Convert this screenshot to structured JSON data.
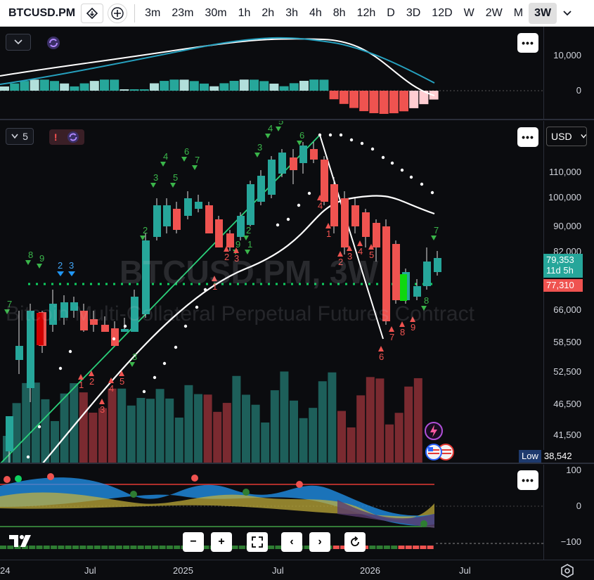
{
  "toolbar": {
    "symbol": "BTCUSD.PM",
    "intervals": [
      "3m",
      "23m",
      "30m",
      "1h",
      "2h",
      "3h",
      "4h",
      "8h",
      "12h",
      "D",
      "3D",
      "12D",
      "W",
      "2W",
      "M",
      "3W"
    ],
    "active_interval": "3W"
  },
  "top_pane": {
    "axis_ticks": [
      "10,000",
      "0"
    ],
    "colors": {
      "macd_line": "#ffffff",
      "signal_line": "#26a1bf",
      "hist_pos": "#26a69a",
      "hist_pos_light": "#b2dfdb",
      "hist_neg": "#ef5350",
      "hist_neg_light": "#ffcdd2"
    }
  },
  "main_pane": {
    "legend_value": "5",
    "watermark": "BTCUSD.PM, 3W",
    "watermark_sub": "Bitcoin Multi-Collateral Perpetual Futures Contract",
    "currency": "USD",
    "axis_ticks": [
      "110,000",
      "100,000",
      "90,000",
      "82,000",
      "66,000",
      "58,500",
      "52,500",
      "46,500",
      "41,500"
    ],
    "price_badge": {
      "price": "79,353",
      "countdown": "11d 5h",
      "color": "#26a69a"
    },
    "level_badge": {
      "price": "77,310",
      "color": "#ef5350"
    },
    "low_label": "Low",
    "low_value": "38,542",
    "td_labels_up": [
      "7",
      "8",
      "9",
      "3",
      "4",
      "5",
      "6",
      "7",
      "2",
      "3",
      "4",
      "5",
      "6",
      "7",
      "8",
      "9",
      "1",
      "2",
      "3",
      "4",
      "5",
      "6",
      "7",
      "8",
      "9",
      "1",
      "2"
    ],
    "td_labels_down": [
      "1",
      "2",
      "3",
      "4",
      "5",
      "1",
      "2",
      "3",
      "4",
      "1",
      "2",
      "3",
      "4",
      "5",
      "6",
      "7",
      "8",
      "9",
      "1"
    ],
    "setup_labels": [
      "2",
      "3"
    ],
    "colors": {
      "up": "#26a69a",
      "down": "#ef5350",
      "signal_green": "#0fd70f",
      "signal_red": "#d00000"
    }
  },
  "bottom_pane": {
    "axis_ticks": [
      "100",
      "0",
      "−100"
    ]
  },
  "time_axis": {
    "labels": [
      "24",
      "Jul",
      "2025",
      "Jul",
      "2026",
      "Jul"
    ]
  },
  "nav": {
    "buttons": [
      "zoom-out",
      "zoom-in",
      "reset-scale",
      "scroll-left",
      "scroll-right",
      "reset-chart"
    ]
  }
}
